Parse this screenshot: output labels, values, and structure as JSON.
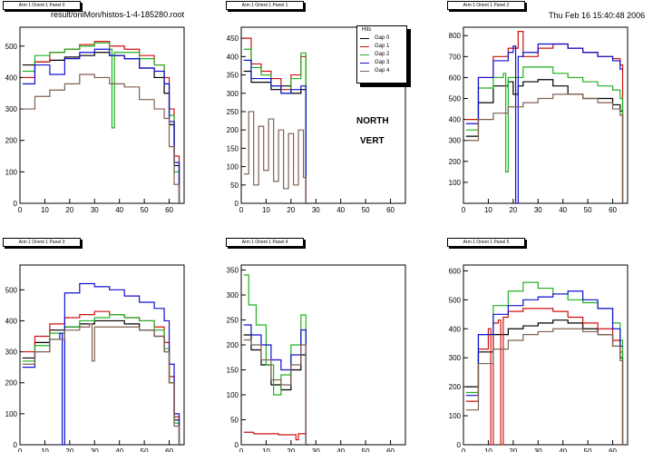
{
  "header": {
    "file": "result/onlMon/histos-1-4-185280.root",
    "date": "Thu Feb 16 15:40:48 2006"
  },
  "annotations": {
    "north": "NORTH",
    "vert": "VERT"
  },
  "legend": {
    "title": "Hits",
    "entries": [
      {
        "label": "Gap 0",
        "color": "#000000"
      },
      {
        "label": "Gap 1",
        "color": "#d01010"
      },
      {
        "label": "Gap 2",
        "color": "#20b020"
      },
      {
        "label": "Gap 3",
        "color": "#1010d0"
      },
      {
        "label": "Gap 4",
        "color": "#806050"
      }
    ]
  },
  "chart_data": [
    {
      "type": "line",
      "step": true,
      "title": "Arm 1 Orient 1 Panel 0",
      "xlim": [
        0,
        66
      ],
      "ylim": [
        0,
        560
      ],
      "xticks": [
        0,
        10,
        20,
        30,
        40,
        50,
        60
      ],
      "yticks": [
        0,
        100,
        200,
        300,
        400,
        500
      ],
      "series": [
        {
          "name": "Gap 0",
          "color": "#000000",
          "x": [
            1,
            6,
            12,
            18,
            24,
            30,
            36,
            42,
            48,
            54,
            58,
            60,
            62,
            64
          ],
          "y": [
            440,
            450,
            455,
            465,
            470,
            480,
            470,
            460,
            430,
            400,
            350,
            250,
            120,
            0
          ]
        },
        {
          "name": "Gap 1",
          "color": "#d01010",
          "x": [
            1,
            6,
            12,
            18,
            24,
            30,
            36,
            42,
            48,
            54,
            58,
            60,
            62,
            64
          ],
          "y": [
            400,
            450,
            480,
            490,
            505,
            515,
            500,
            490,
            470,
            440,
            400,
            300,
            150,
            0
          ]
        },
        {
          "name": "Gap 2",
          "color": "#20b020",
          "x": [
            1,
            6,
            12,
            18,
            24,
            30,
            36,
            37,
            38,
            42,
            48,
            54,
            58,
            60,
            62,
            64
          ],
          "y": [
            420,
            470,
            480,
            490,
            500,
            510,
            490,
            240,
            480,
            480,
            460,
            440,
            380,
            280,
            100,
            0
          ]
        },
        {
          "name": "Gap 3",
          "color": "#1010d0",
          "x": [
            1,
            6,
            12,
            18,
            24,
            30,
            36,
            42,
            48,
            54,
            58,
            60,
            62,
            64
          ],
          "y": [
            380,
            440,
            410,
            460,
            480,
            490,
            470,
            460,
            430,
            420,
            380,
            260,
            130,
            0
          ]
        },
        {
          "name": "Gap 4",
          "color": "#806050",
          "x": [
            1,
            6,
            12,
            18,
            24,
            30,
            36,
            42,
            48,
            54,
            58,
            60,
            62,
            64
          ],
          "y": [
            300,
            340,
            360,
            380,
            410,
            400,
            380,
            370,
            330,
            300,
            270,
            180,
            60,
            0
          ]
        }
      ]
    },
    {
      "type": "line",
      "step": true,
      "title": "Arm 1 Orient 1 Panel 1",
      "xlim": [
        0,
        66
      ],
      "ylim": [
        0,
        480
      ],
      "xticks": [
        0,
        10,
        20,
        30,
        40,
        50,
        60
      ],
      "yticks": [
        0,
        50,
        100,
        150,
        200,
        250,
        300,
        350,
        400,
        450
      ],
      "series": [
        {
          "name": "Gap 0",
          "color": "#000000",
          "x": [
            1,
            4,
            8,
            12,
            16,
            20,
            24,
            26
          ],
          "y": [
            360,
            330,
            330,
            310,
            320,
            300,
            310,
            0
          ]
        },
        {
          "name": "Gap 1",
          "color": "#d01010",
          "x": [
            1,
            4,
            8,
            12,
            16,
            20,
            24,
            26
          ],
          "y": [
            450,
            380,
            360,
            340,
            310,
            350,
            400,
            0
          ]
        },
        {
          "name": "Gap 2",
          "color": "#20b020",
          "x": [
            1,
            4,
            8,
            12,
            16,
            20,
            24,
            26
          ],
          "y": [
            420,
            370,
            350,
            320,
            300,
            340,
            410,
            0
          ]
        },
        {
          "name": "Gap 3",
          "color": "#1010d0",
          "x": [
            1,
            4,
            8,
            12,
            16,
            20,
            24,
            26
          ],
          "y": [
            390,
            340,
            340,
            320,
            300,
            310,
            320,
            0
          ]
        },
        {
          "name": "Gap 4",
          "color": "#806050",
          "x": [
            1,
            3,
            5,
            7,
            9,
            11,
            13,
            15,
            17,
            19,
            21,
            23,
            25,
            26
          ],
          "y": [
            80,
            250,
            50,
            210,
            90,
            230,
            60,
            200,
            40,
            190,
            50,
            200,
            70,
            0
          ]
        }
      ]
    },
    {
      "type": "line",
      "step": true,
      "title": "Arm 1 Orient 1 Panel 2",
      "xlim": [
        0,
        66
      ],
      "ylim": [
        0,
        840
      ],
      "xticks": [
        0,
        10,
        20,
        30,
        40,
        50,
        60
      ],
      "yticks": [
        100,
        200,
        300,
        400,
        500,
        600,
        700,
        800
      ],
      "series": [
        {
          "name": "Gap 0",
          "color": "#000000",
          "x": [
            1,
            6,
            12,
            18,
            20,
            22,
            24,
            30,
            36,
            42,
            48,
            54,
            60,
            63,
            64
          ],
          "y": [
            320,
            480,
            560,
            580,
            520,
            560,
            580,
            590,
            560,
            520,
            500,
            500,
            470,
            440,
            0
          ]
        },
        {
          "name": "Gap 1",
          "color": "#d01010",
          "x": [
            1,
            6,
            12,
            18,
            22,
            24,
            30,
            36,
            42,
            48,
            54,
            60,
            63,
            64
          ],
          "y": [
            400,
            600,
            700,
            740,
            820,
            700,
            740,
            760,
            740,
            720,
            700,
            690,
            660,
            0
          ]
        },
        {
          "name": "Gap 2",
          "color": "#20b020",
          "x": [
            1,
            6,
            12,
            16,
            17,
            18,
            24,
            30,
            36,
            42,
            48,
            54,
            60,
            63,
            64
          ],
          "y": [
            350,
            550,
            600,
            620,
            150,
            600,
            650,
            650,
            620,
            600,
            580,
            560,
            540,
            500,
            0
          ]
        },
        {
          "name": "Gap 3",
          "color": "#1010d0",
          "x": [
            1,
            6,
            12,
            18,
            20,
            21,
            22,
            24,
            30,
            36,
            42,
            48,
            54,
            60,
            63
          ],
          "y": [
            380,
            600,
            680,
            720,
            750,
            0,
            700,
            720,
            760,
            760,
            740,
            720,
            700,
            680,
            640
          ]
        },
        {
          "name": "Gap 4",
          "color": "#806050",
          "x": [
            1,
            6,
            12,
            18,
            24,
            30,
            36,
            42,
            48,
            54,
            60,
            63,
            64
          ],
          "y": [
            300,
            400,
            430,
            460,
            480,
            500,
            520,
            520,
            500,
            480,
            450,
            420,
            0
          ]
        }
      ]
    },
    {
      "type": "line",
      "step": true,
      "title": "Arm 1 Orient 1 Panel 3",
      "xlim": [
        0,
        66
      ],
      "ylim": [
        0,
        580
      ],
      "xticks": [
        0,
        10,
        20,
        30,
        40,
        50,
        60
      ],
      "yticks": [
        0,
        100,
        200,
        300,
        400,
        500
      ],
      "series": [
        {
          "name": "Gap 0",
          "color": "#000000",
          "x": [
            1,
            6,
            12,
            18,
            24,
            30,
            36,
            42,
            48,
            54,
            58,
            60,
            62,
            64
          ],
          "y": [
            280,
            330,
            370,
            380,
            390,
            400,
            400,
            390,
            370,
            350,
            300,
            200,
            80,
            0
          ]
        },
        {
          "name": "Gap 1",
          "color": "#d01010",
          "x": [
            1,
            6,
            12,
            18,
            24,
            30,
            36,
            42,
            48,
            54,
            58,
            60,
            62,
            64
          ],
          "y": [
            300,
            350,
            390,
            410,
            420,
            430,
            420,
            410,
            400,
            380,
            330,
            220,
            90,
            0
          ]
        },
        {
          "name": "Gap 2",
          "color": "#20b020",
          "x": [
            1,
            6,
            12,
            18,
            24,
            30,
            36,
            42,
            48,
            54,
            58,
            60,
            62,
            64
          ],
          "y": [
            270,
            320,
            360,
            380,
            400,
            410,
            420,
            410,
            400,
            370,
            310,
            200,
            70,
            0
          ]
        },
        {
          "name": "Gap 3",
          "color": "#1010d0",
          "x": [
            1,
            6,
            12,
            16,
            17,
            18,
            24,
            30,
            36,
            42,
            48,
            54,
            58,
            60,
            62,
            64
          ],
          "y": [
            250,
            300,
            340,
            360,
            0,
            490,
            520,
            510,
            500,
            480,
            460,
            440,
            400,
            260,
            100,
            0
          ]
        },
        {
          "name": "Gap 4",
          "color": "#806050",
          "x": [
            1,
            6,
            12,
            18,
            24,
            28,
            29,
            30,
            36,
            42,
            48,
            54,
            58,
            60,
            62,
            64
          ],
          "y": [
            260,
            300,
            340,
            370,
            380,
            390,
            270,
            380,
            380,
            380,
            370,
            350,
            300,
            200,
            60,
            0
          ]
        }
      ]
    },
    {
      "type": "line",
      "step": true,
      "title": "Arm 1 Orient 1 Panel 4",
      "xlim": [
        0,
        66
      ],
      "ylim": [
        0,
        360
      ],
      "xticks": [
        0,
        10,
        20,
        30,
        40,
        50,
        60
      ],
      "yticks": [
        0,
        50,
        100,
        150,
        200,
        250,
        300,
        350
      ],
      "series": [
        {
          "name": "Gap 0",
          "color": "#000000",
          "x": [
            1,
            4,
            8,
            12,
            16,
            20,
            24,
            26
          ],
          "y": [
            220,
            190,
            160,
            120,
            110,
            150,
            180,
            0
          ]
        },
        {
          "name": "Gap 1",
          "color": "#d01010",
          "x": [
            1,
            5,
            10,
            15,
            20,
            22,
            23,
            26
          ],
          "y": [
            25,
            22,
            22,
            20,
            20,
            10,
            22,
            0
          ]
        },
        {
          "name": "Gap 2",
          "color": "#20b020",
          "x": [
            1,
            3,
            6,
            10,
            13,
            16,
            20,
            24,
            26
          ],
          "y": [
            340,
            280,
            240,
            160,
            100,
            140,
            200,
            260,
            0
          ]
        },
        {
          "name": "Gap 3",
          "color": "#1010d0",
          "x": [
            1,
            4,
            8,
            12,
            16,
            20,
            24,
            26
          ],
          "y": [
            240,
            220,
            200,
            170,
            150,
            180,
            230,
            0
          ]
        },
        {
          "name": "Gap 4",
          "color": "#806050",
          "x": [
            1,
            4,
            8,
            12,
            16,
            20,
            24,
            26
          ],
          "y": [
            210,
            200,
            170,
            130,
            120,
            160,
            200,
            0
          ]
        }
      ]
    },
    {
      "type": "line",
      "step": true,
      "title": "Arm 1 Orient 1 Panel 5",
      "xlim": [
        0,
        66
      ],
      "ylim": [
        0,
        620
      ],
      "xticks": [
        0,
        10,
        20,
        30,
        40,
        50,
        60
      ],
      "yticks": [
        0,
        100,
        200,
        300,
        400,
        500,
        600
      ],
      "series": [
        {
          "name": "Gap 0",
          "color": "#000000",
          "x": [
            1,
            6,
            12,
            18,
            24,
            30,
            36,
            42,
            48,
            54,
            60,
            63,
            64
          ],
          "y": [
            200,
            320,
            380,
            400,
            410,
            420,
            430,
            420,
            400,
            380,
            340,
            300,
            0
          ]
        },
        {
          "name": "Gap 1",
          "color": "#d01010",
          "x": [
            1,
            6,
            10,
            11,
            12,
            14,
            15,
            16,
            18,
            24,
            30,
            36,
            42,
            48,
            54,
            60,
            63,
            64
          ],
          "y": [
            150,
            330,
            400,
            0,
            420,
            430,
            0,
            440,
            460,
            470,
            470,
            460,
            440,
            420,
            400,
            360,
            320,
            0
          ]
        },
        {
          "name": "Gap 2",
          "color": "#20b020",
          "x": [
            1,
            6,
            12,
            18,
            24,
            30,
            36,
            42,
            48,
            54,
            60,
            63,
            64
          ],
          "y": [
            180,
            380,
            480,
            530,
            560,
            540,
            520,
            500,
            490,
            470,
            420,
            360,
            0
          ]
        },
        {
          "name": "Gap 3",
          "color": "#1010d0",
          "x": [
            1,
            6,
            12,
            18,
            24,
            30,
            36,
            42,
            48,
            54,
            60,
            63
          ],
          "y": [
            170,
            380,
            450,
            480,
            500,
            510,
            520,
            530,
            500,
            470,
            400,
            340
          ]
        },
        {
          "name": "Gap 4",
          "color": "#806050",
          "x": [
            1,
            6,
            12,
            18,
            24,
            30,
            36,
            42,
            48,
            54,
            60,
            63,
            64
          ],
          "y": [
            120,
            280,
            330,
            360,
            380,
            390,
            400,
            400,
            390,
            380,
            340,
            290,
            0
          ]
        }
      ]
    }
  ]
}
